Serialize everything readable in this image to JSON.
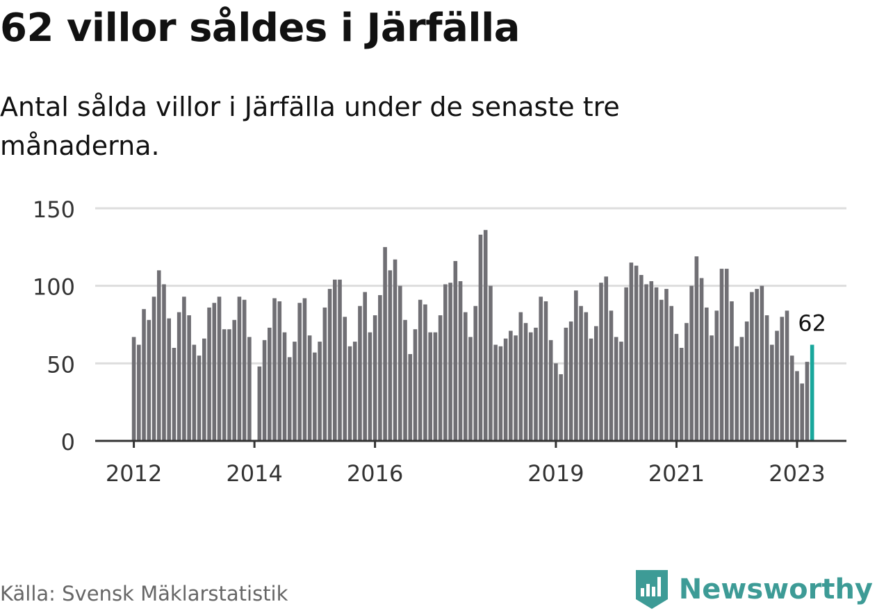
{
  "title": "62 villor såldes i Järfälla",
  "subtitle": "Antal sålda villor i Järfälla under de senaste tre månaderna.",
  "source": "Källa: Svensk Mäklarstatistik",
  "brand": {
    "name": "Newsworthy",
    "icon": "newsworthy-logo-icon"
  },
  "colors": {
    "bar": "#706f74",
    "highlight": "#19a79c",
    "grid": "#dddddd",
    "axis": "#333333",
    "brand": "#3d9b96"
  },
  "chart_data": {
    "type": "bar",
    "title": "",
    "xlabel": "",
    "ylabel": "",
    "ylim": [
      0,
      150
    ],
    "yticks": [
      0,
      50,
      100,
      150
    ],
    "x_tick_labels": [
      {
        "label": "2012",
        "index": 0
      },
      {
        "label": "2014",
        "index": 24
      },
      {
        "label": "2016",
        "index": 48
      },
      {
        "label": "2019",
        "index": 84
      },
      {
        "label": "2021",
        "index": 108
      },
      {
        "label": "2023",
        "index": 132
      }
    ],
    "start": "2012-01",
    "values": [
      67,
      62,
      85,
      78,
      93,
      110,
      101,
      79,
      60,
      83,
      93,
      81,
      62,
      55,
      66,
      86,
      89,
      93,
      72,
      72,
      78,
      93,
      91,
      67,
      null,
      48,
      65,
      73,
      92,
      90,
      70,
      54,
      64,
      89,
      92,
      68,
      57,
      64,
      86,
      98,
      104,
      104,
      80,
      61,
      64,
      87,
      96,
      70,
      81,
      94,
      125,
      110,
      117,
      100,
      78,
      56,
      72,
      91,
      88,
      70,
      70,
      81,
      101,
      102,
      116,
      103,
      83,
      67,
      87,
      133,
      136,
      100,
      62,
      61,
      66,
      71,
      68,
      83,
      76,
      70,
      73,
      93,
      90,
      65,
      50,
      43,
      73,
      77,
      97,
      87,
      83,
      66,
      74,
      102,
      106,
      84,
      67,
      64,
      99,
      115,
      113,
      107,
      101,
      103,
      99,
      91,
      98,
      87,
      69,
      60,
      76,
      100,
      119,
      105,
      86,
      68,
      84,
      111,
      111,
      90,
      61,
      67,
      77,
      96,
      98,
      100,
      81,
      62,
      71,
      80,
      84,
      55,
      45,
      37,
      51,
      62
    ],
    "highlight_label": "62"
  }
}
